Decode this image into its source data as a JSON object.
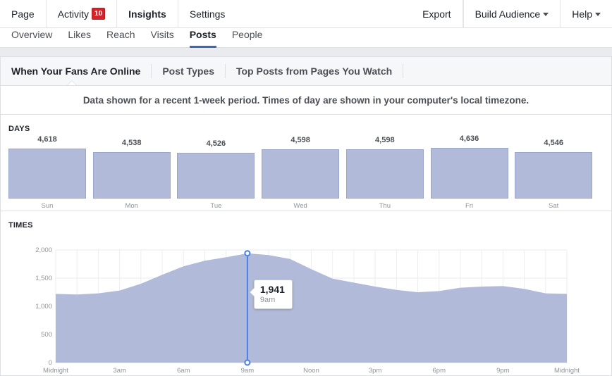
{
  "topbar": {
    "items": [
      {
        "label": "Page"
      },
      {
        "label": "Activity",
        "badge": "10"
      },
      {
        "label": "Insights"
      },
      {
        "label": "Settings"
      }
    ],
    "right": {
      "export": "Export",
      "build_audience": "Build Audience",
      "help": "Help"
    }
  },
  "subnav": {
    "tabs": [
      {
        "label": "Overview"
      },
      {
        "label": "Likes"
      },
      {
        "label": "Reach"
      },
      {
        "label": "Visits"
      },
      {
        "label": "Posts"
      },
      {
        "label": "People"
      }
    ],
    "active": "Posts"
  },
  "panel": {
    "tabs": [
      {
        "label": "When Your Fans Are Online"
      },
      {
        "label": "Post Types"
      },
      {
        "label": "Top Posts from Pages You Watch"
      }
    ],
    "notice": "Data shown for a recent 1-week period. Times of day are shown in your computer's local timezone."
  },
  "colors": {
    "accent": "#4267b2",
    "bar_fill": "#b1bbd9",
    "area_fill": "#b1bbd9",
    "marker": "#4a80e8",
    "badge": "#d6232a"
  },
  "chart_data": [
    {
      "type": "bar",
      "title": "DAYS",
      "categories": [
        "Sun",
        "Mon",
        "Tue",
        "Wed",
        "Thu",
        "Fri",
        "Sat"
      ],
      "values": [
        4618,
        4538,
        4526,
        4598,
        4598,
        4636,
        4546
      ],
      "value_labels": [
        "4,618",
        "4,538",
        "4,526",
        "4,598",
        "4,598",
        "4,636",
        "4,546"
      ]
    },
    {
      "type": "area",
      "title": "TIMES",
      "x_tick_labels": [
        "Midnight",
        "3am",
        "6am",
        "9am",
        "Noon",
        "3pm",
        "6pm",
        "9pm",
        "Midnight"
      ],
      "y_tick_labels": [
        "2,000",
        "1,500",
        "1,000",
        "500",
        "0"
      ],
      "ylim": [
        0,
        2000
      ],
      "xlim": [
        0,
        24
      ],
      "x": [
        0,
        1,
        2,
        3,
        4,
        5,
        6,
        7,
        8,
        9,
        10,
        11,
        12,
        13,
        14,
        15,
        16,
        17,
        18,
        19,
        20,
        21,
        22,
        23,
        24
      ],
      "y": [
        1220,
        1210,
        1230,
        1280,
        1400,
        1560,
        1710,
        1810,
        1870,
        1941,
        1910,
        1840,
        1660,
        1490,
        1420,
        1350,
        1290,
        1250,
        1270,
        1330,
        1350,
        1360,
        1310,
        1230,
        1220
      ],
      "grid": true,
      "highlight": {
        "x": 9,
        "value": "1,941",
        "label": "9am"
      }
    }
  ]
}
